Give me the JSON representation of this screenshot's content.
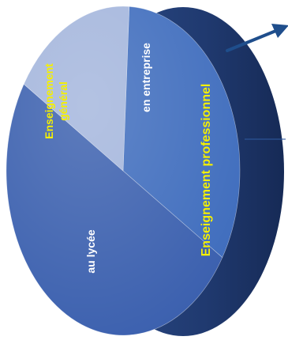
{
  "chart_data": {
    "type": "pie",
    "title": "",
    "style": "3d-disc-viewed-from-side",
    "slices": [
      {
        "label": "en entreprise",
        "value": 33,
        "color": "#3e6cbd"
      },
      {
        "label": "au lycée",
        "value": 50,
        "color": "#3a5fae"
      },
      {
        "label": "Enseignement général",
        "value": 17,
        "color": "#a3b5dc"
      }
    ],
    "group_label": "Enseignement professionnel",
    "colors": {
      "label_white": "#ffffff",
      "label_yellow": "#f5f000",
      "rim": "#1f3767",
      "arrow": "#1f4e8c"
    }
  }
}
